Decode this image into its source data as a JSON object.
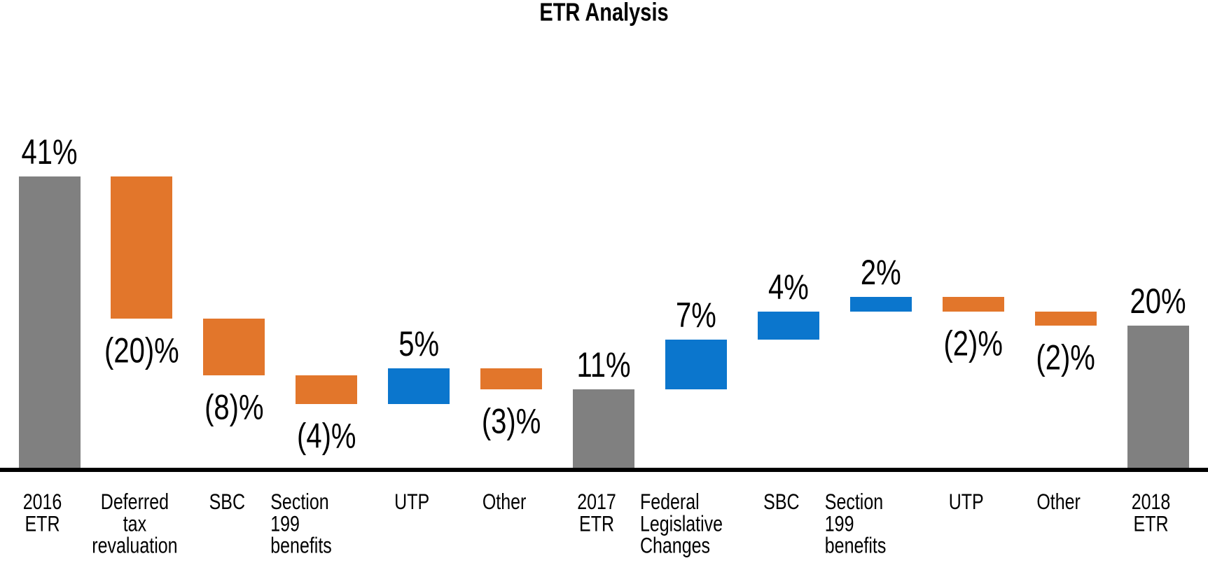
{
  "chart_data": {
    "type": "bar",
    "subtype": "waterfall",
    "title": "ETR Analysis",
    "xlabel": "",
    "ylabel": "",
    "unit": "%",
    "ylim": [
      0,
      41
    ],
    "grid": false,
    "legend": false,
    "axis_line_color": "#000000",
    "colors": {
      "total": "#808080",
      "increase": "#0B76CD",
      "decrease": "#E2762B"
    },
    "categories": [
      "2016 ETR",
      "Deferred tax revaluation",
      "SBC",
      "Section 199 benefits",
      "UTP",
      "Other",
      "2017 ETR",
      "Federal Legislative Changes",
      "SBC",
      "Section 199 benefits",
      "UTP",
      "Other",
      "2018 ETR"
    ],
    "items": [
      {
        "category": "2016 ETR",
        "label_lines": [
          "2016",
          "ETR"
        ],
        "align": "center",
        "value": 41,
        "kind": "total",
        "display": "41%",
        "label_position": "above",
        "cumulative": 41
      },
      {
        "category": "Deferred tax revaluation",
        "label_lines": [
          "Deferred",
          "tax",
          "revaluation"
        ],
        "align": "center",
        "value": -20,
        "kind": "decrease",
        "display": "(20)%",
        "label_position": "below",
        "cumulative": 21
      },
      {
        "category": "SBC",
        "label_lines": [
          "SBC"
        ],
        "align": "center",
        "value": -8,
        "kind": "decrease",
        "display": "(8)%",
        "label_position": "below",
        "cumulative": 13
      },
      {
        "category": "Section 199 benefits",
        "label_lines": [
          "Section",
          "199",
          "benefits"
        ],
        "align": "left",
        "value": -4,
        "kind": "decrease",
        "display": "(4)%",
        "label_position": "below",
        "cumulative": 9
      },
      {
        "category": "UTP",
        "label_lines": [
          "UTP"
        ],
        "align": "center",
        "value": 5,
        "kind": "increase",
        "display": "5%",
        "label_position": "above",
        "cumulative": 14
      },
      {
        "category": "Other",
        "label_lines": [
          "Other"
        ],
        "align": "center",
        "value": -3,
        "kind": "decrease",
        "display": "(3)%",
        "label_position": "below",
        "cumulative": 11
      },
      {
        "category": "2017 ETR",
        "label_lines": [
          "2017",
          "ETR"
        ],
        "align": "center",
        "value": 11,
        "kind": "total",
        "display": "11%",
        "label_position": "above",
        "cumulative": 11
      },
      {
        "category": "Federal Legislative Changes",
        "label_lines": [
          "Federal",
          "Legislative",
          "Changes"
        ],
        "align": "left",
        "value": 7,
        "kind": "increase",
        "display": "7%",
        "label_position": "above",
        "cumulative": 18
      },
      {
        "category": "SBC",
        "label_lines": [
          "SBC"
        ],
        "align": "center",
        "value": 4,
        "kind": "increase",
        "display": "4%",
        "label_position": "above",
        "cumulative": 22
      },
      {
        "category": "Section 199 benefits",
        "label_lines": [
          "Section",
          "199",
          "benefits"
        ],
        "align": "left",
        "value": 2,
        "kind": "increase",
        "display": "2%",
        "label_position": "above",
        "cumulative": 24
      },
      {
        "category": "UTP",
        "label_lines": [
          "UTP"
        ],
        "align": "center",
        "value": -2,
        "kind": "decrease",
        "display": "(2)%",
        "label_position": "below",
        "cumulative": 22
      },
      {
        "category": "Other",
        "label_lines": [
          "Other"
        ],
        "align": "center",
        "value": -2,
        "kind": "decrease",
        "display": "(2)%",
        "label_position": "below",
        "cumulative": 20
      },
      {
        "category": "2018 ETR",
        "label_lines": [
          "2018",
          "ETR"
        ],
        "align": "center",
        "value": 20,
        "kind": "total",
        "display": "20%",
        "label_position": "above",
        "cumulative": 20
      }
    ]
  }
}
